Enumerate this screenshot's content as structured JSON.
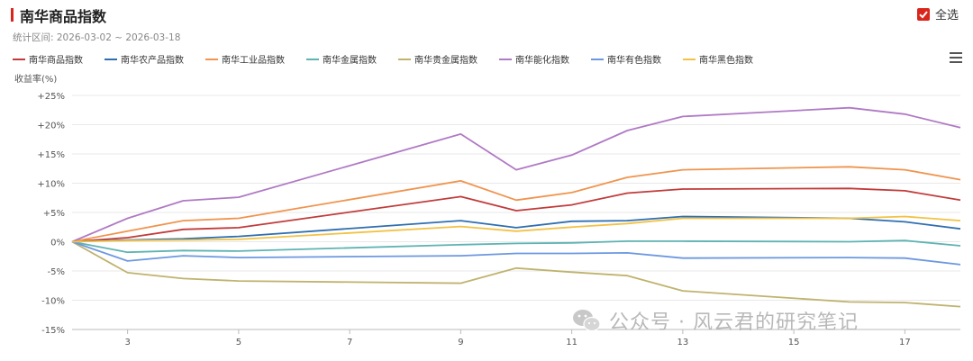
{
  "header": {
    "title": "南华商品指数",
    "select_all_label": "全选"
  },
  "period_text": "统计区间: 2026-03-02 ~ 2026-03-18",
  "watermark_text": "公众号 · 风云君的研究笔记",
  "colors": {
    "accent": "#d9261c"
  },
  "icons": {
    "menu": "hamburger-menu-icon",
    "checkbox": "checkbox-checked-icon",
    "wechat": "wechat-icon"
  },
  "chart_data": {
    "type": "line",
    "ylabel": "收益率(%)",
    "xlim": [
      2,
      18
    ],
    "ylim": [
      -15,
      25
    ],
    "x_ticks": [
      3,
      5,
      7,
      9,
      11,
      13,
      15,
      17
    ],
    "y_ticks": [
      25,
      20,
      15,
      10,
      5,
      0,
      -5,
      -10,
      -15
    ],
    "y_tick_labels": [
      "+25%",
      "+20%",
      "+15%",
      "+10%",
      "+5%",
      "0%",
      "-5%",
      "-10%",
      "-15%"
    ],
    "grid": true,
    "legend_position": "top-left",
    "x": [
      2,
      3,
      4,
      5,
      9,
      10,
      11,
      12,
      13,
      16,
      17,
      18
    ],
    "series": [
      {
        "name": "南华商品指数",
        "color": "#c23b3a",
        "values": [
          0,
          0.7,
          2.1,
          2.4,
          7.7,
          5.3,
          6.3,
          8.3,
          9.0,
          9.1,
          8.7,
          7.1
        ]
      },
      {
        "name": "南华农产品指数",
        "color": "#2f6fb0",
        "values": [
          0,
          0.3,
          0.5,
          0.9,
          3.6,
          2.4,
          3.5,
          3.6,
          4.3,
          4.0,
          3.4,
          2.2
        ]
      },
      {
        "name": "南华工业品指数",
        "color": "#f0944e",
        "values": [
          0,
          1.8,
          3.6,
          4.0,
          10.4,
          7.1,
          8.4,
          11.0,
          12.3,
          12.8,
          12.3,
          10.6
        ]
      },
      {
        "name": "南华金属指数",
        "color": "#5fb3b3",
        "values": [
          0,
          -1.8,
          -1.5,
          -1.6,
          -0.5,
          -0.3,
          -0.2,
          0.1,
          0.1,
          0.0,
          0.2,
          -0.7
        ]
      },
      {
        "name": "南华贵金属指数",
        "color": "#bfb36e",
        "values": [
          0,
          -5.3,
          -6.3,
          -6.7,
          -7.1,
          -4.5,
          -5.2,
          -5.8,
          -8.4,
          -10.3,
          -10.4,
          -11.1
        ]
      },
      {
        "name": "南华能化指数",
        "color": "#b07ac5",
        "values": [
          0,
          4.0,
          7.0,
          7.6,
          18.4,
          12.3,
          14.8,
          19.0,
          21.4,
          22.9,
          21.8,
          19.5
        ]
      },
      {
        "name": "南华有色指数",
        "color": "#6c98e0",
        "values": [
          0,
          -3.3,
          -2.4,
          -2.7,
          -2.4,
          -2.0,
          -2.0,
          -1.9,
          -2.8,
          -2.7,
          -2.8,
          -3.9
        ]
      },
      {
        "name": "南华黑色指数",
        "color": "#f2c244",
        "values": [
          0,
          0.2,
          0.3,
          0.4,
          2.6,
          1.8,
          2.5,
          3.1,
          4.0,
          4.0,
          4.3,
          3.6
        ]
      }
    ]
  }
}
